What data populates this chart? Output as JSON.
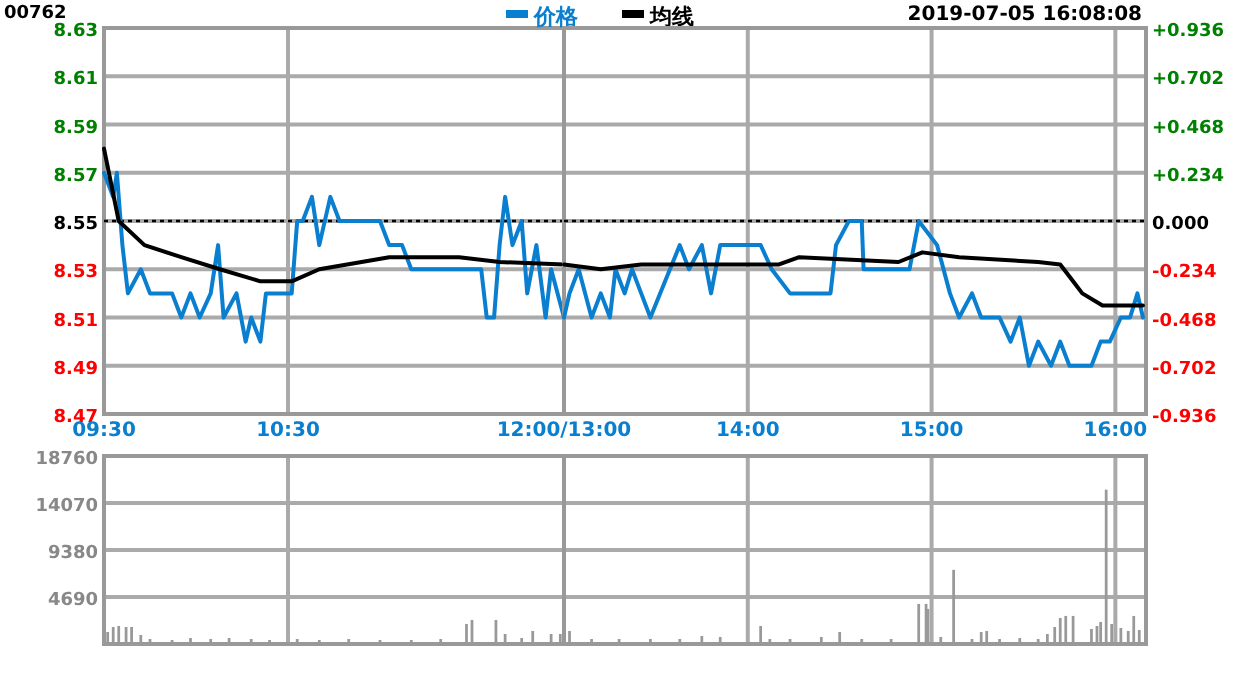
{
  "chart_data": [
    {
      "type": "line",
      "title": "00762",
      "legend": "top",
      "grid": true,
      "xlim": [
        9.5,
        12
      ],
      "xticks": [
        {
          "value": 9.5,
          "label": "09:30"
        },
        {
          "value": 10.5,
          "label": "10:30"
        },
        {
          "value": 12,
          "label": "12:00/13:00"
        }
      ],
      "ylim": [
        8.47,
        8.63
      ],
      "yticks": [
        8.63,
        8.61,
        8.59,
        8.57,
        8.55,
        8.53,
        8.51,
        8.49,
        8.47
      ],
      "ref_lines": [
        {
          "axis": "y",
          "value": 8.55,
          "color": "#000000",
          "line_style": "dotted"
        }
      ],
      "series": [
        {
          "name": "价格",
          "color": "#0a7fd0",
          "x": [
            9.5,
            9.55,
            9.57,
            9.6,
            9.63,
            9.7,
            9.75,
            9.87,
            9.92,
            9.97,
            10.02,
            10.08,
            10.12,
            10.15,
            10.22,
            10.27,
            10.3,
            10.35,
            10.38,
            10.45,
            10.52,
            10.55,
            10.58,
            10.63,
            10.67,
            10.73,
            10.78,
            10.9,
            11,
            11.05,
            11.12,
            11.17,
            11.55,
            11.58,
            11.62,
            11.65,
            11.68,
            11.72,
            11.77,
            11.8,
            11.85,
            11.9,
            11.93,
            12
          ],
          "values": [
            8.57,
            8.56,
            8.57,
            8.54,
            8.52,
            8.53,
            8.52,
            8.52,
            8.51,
            8.52,
            8.51,
            8.52,
            8.54,
            8.51,
            8.52,
            8.5,
            8.51,
            8.5,
            8.52,
            8.52,
            8.52,
            8.55,
            8.55,
            8.56,
            8.54,
            8.56,
            8.55,
            8.55,
            8.55,
            8.54,
            8.54,
            8.53,
            8.53,
            8.51,
            8.51,
            8.54,
            8.56,
            8.54,
            8.55,
            8.52,
            8.54,
            8.51,
            8.53,
            8.51
          ]
        },
        {
          "name": "均线",
          "color": "#000000",
          "x": [
            9.5,
            9.58,
            9.72,
            9.92,
            10.13,
            10.35,
            10.52,
            10.67,
            10.9,
            11.05,
            11.43,
            11.65,
            12
          ],
          "values": [
            8.58,
            8.55,
            8.54,
            8.535,
            8.53,
            8.525,
            8.525,
            8.53,
            8.533,
            8.535,
            8.535,
            8.533,
            8.532
          ]
        }
      ]
    },
    {
      "type": "line",
      "subtitle": "2019-07-05 16:08:08",
      "grid": true,
      "tick_labels": "x",
      "xlim": [
        13,
        16.1667
      ],
      "xticks": [
        {
          "value": 13,
          "label": null
        },
        {
          "value": 14,
          "label": "14:00"
        },
        {
          "value": 15,
          "label": "15:00"
        },
        {
          "value": 16,
          "label": "16:00"
        }
      ],
      "ylim": [
        8.47,
        8.63
      ],
      "yticks": [
        8.63,
        8.61,
        8.59,
        8.57,
        8.55,
        8.53,
        8.51,
        8.49,
        8.47
      ],
      "y2lim": [
        -0.936,
        0.936
      ],
      "y2ticks": [
        {
          "value": 0.936,
          "label": "+0.936"
        },
        {
          "value": 0.702,
          "label": "+0.702"
        },
        {
          "value": 0.468,
          "label": "+0.468"
        },
        {
          "value": 0.234,
          "label": "+0.234"
        },
        {
          "value": 0,
          "label": "0.000"
        },
        {
          "value": -0.234,
          "label": "-0.234"
        },
        {
          "value": -0.468,
          "label": "-0.468"
        },
        {
          "value": -0.702,
          "label": "-0.702"
        },
        {
          "value": -0.936,
          "label": "-0.936"
        }
      ],
      "ref_lines": [
        {
          "axis": "y",
          "value": 8.55,
          "color": "#000000",
          "line_style": "dotted"
        }
      ],
      "series": [
        {
          "color": "#0a7fd0",
          "x": [
            13,
            13.03,
            13.08,
            13.15,
            13.2,
            13.25,
            13.28,
            13.33,
            13.37,
            13.42,
            13.47,
            13.63,
            13.68,
            13.75,
            13.8,
            13.85,
            14.07,
            14.13,
            14.23,
            14.45,
            14.48,
            14.55,
            14.62,
            14.63,
            14.88,
            14.93,
            15.03,
            15.1,
            15.15,
            15.22,
            15.27,
            15.32,
            15.37,
            15.43,
            15.48,
            15.53,
            15.58,
            15.65,
            15.7,
            15.75,
            15.87,
            15.92,
            15.97,
            16.03,
            16.08,
            16.12,
            16.15
          ],
          "values": [
            8.51,
            8.52,
            8.53,
            8.51,
            8.52,
            8.51,
            8.53,
            8.52,
            8.53,
            8.52,
            8.51,
            8.54,
            8.53,
            8.54,
            8.52,
            8.54,
            8.54,
            8.53,
            8.52,
            8.52,
            8.54,
            8.55,
            8.55,
            8.53,
            8.53,
            8.55,
            8.54,
            8.52,
            8.51,
            8.52,
            8.51,
            8.51,
            8.51,
            8.5,
            8.51,
            8.49,
            8.5,
            8.49,
            8.5,
            8.49,
            8.49,
            8.5,
            8.5,
            8.51,
            8.51,
            8.52,
            8.51
          ]
        },
        {
          "color": "#000000",
          "x": [
            13,
            13.2,
            13.42,
            14.17,
            14.28,
            14.82,
            14.95,
            15.15,
            15.58,
            15.7,
            15.77,
            15.82,
            15.93,
            16.15
          ],
          "values": [
            8.532,
            8.53,
            8.532,
            8.532,
            8.535,
            8.533,
            8.537,
            8.535,
            8.533,
            8.532,
            8.525,
            8.52,
            8.515,
            8.515
          ]
        }
      ]
    },
    {
      "type": "bar",
      "grid": true,
      "tick_labels": "y",
      "color": "#999999",
      "xlim": [
        9.5,
        12
      ],
      "xticks": [
        {
          "value": 9.5,
          "label": null
        },
        {
          "value": 10.5,
          "label": null
        },
        {
          "value": 12,
          "label": null
        }
      ],
      "ylim": [
        0,
        18760
      ],
      "yticks": [
        18760,
        14070,
        9380,
        4690
      ],
      "x": [
        9.52,
        9.55,
        9.58,
        9.62,
        9.65,
        9.7,
        9.75,
        9.87,
        9.97,
        10.08,
        10.18,
        10.3,
        10.4,
        10.55,
        10.67,
        10.83,
        11,
        11.17,
        11.33,
        11.47,
        11.5,
        11.63,
        11.68,
        11.77,
        11.83,
        11.93,
        11.98
      ],
      "values": [
        1200,
        1700,
        1800,
        1700,
        1700,
        900,
        500,
        400,
        600,
        500,
        600,
        500,
        400,
        500,
        400,
        500,
        400,
        400,
        500,
        2000,
        2400,
        2400,
        1000,
        600,
        1300,
        1000,
        1000
      ]
    },
    {
      "type": "bar",
      "grid": true,
      "tick_labels": false,
      "color": "#999999",
      "xlim": [
        13,
        16.1667
      ],
      "xticks": [
        {
          "value": 13,
          "label": null
        },
        {
          "value": 14,
          "label": null
        },
        {
          "value": 15,
          "label": null
        },
        {
          "value": 16,
          "label": null
        }
      ],
      "ylim": [
        0,
        18760
      ],
      "yticks": [
        18760,
        14070,
        9380,
        4690
      ],
      "x": [
        13.03,
        13.15,
        13.3,
        13.47,
        13.63,
        13.75,
        13.85,
        14.07,
        14.12,
        14.23,
        14.4,
        14.5,
        14.62,
        14.78,
        14.93,
        14.97,
        14.98,
        15.05,
        15.12,
        15.22,
        15.27,
        15.3,
        15.37,
        15.48,
        15.58,
        15.63,
        15.67,
        15.7,
        15.73,
        15.77,
        15.87,
        15.9,
        15.92,
        15.95,
        15.98,
        16.03,
        16.07,
        16.1,
        16.13
      ],
      "values": [
        1300,
        500,
        500,
        500,
        500,
        800,
        700,
        1800,
        500,
        500,
        700,
        1200,
        500,
        500,
        4000,
        4000,
        3500,
        700,
        7400,
        500,
        1200,
        1300,
        500,
        600,
        500,
        1000,
        1700,
        2600,
        2800,
        2800,
        1500,
        1800,
        2200,
        15400,
        2000,
        1600,
        1300,
        2800,
        1400
      ]
    }
  ]
}
